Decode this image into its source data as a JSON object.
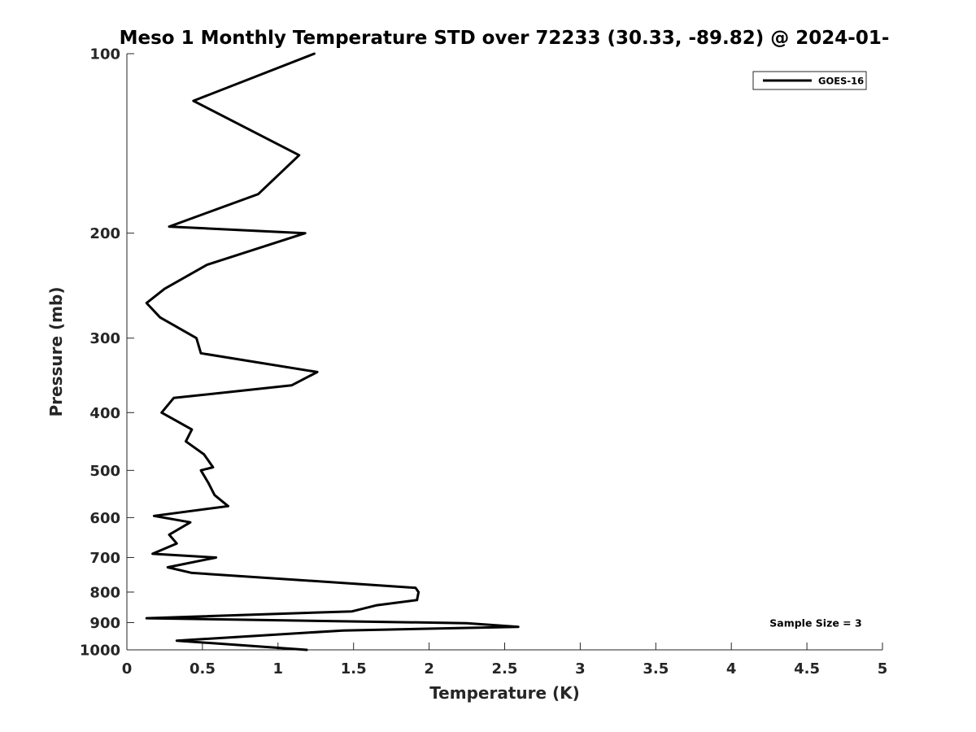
{
  "chart_data": {
    "type": "line",
    "title": "Meso 1 Monthly Temperature STD over 72233 (30.33, -89.82) @ 2024-01-",
    "xlabel": "Temperature (K)",
    "ylabel": "Pressure (mb)",
    "xlim": [
      0,
      5
    ],
    "ylim": [
      100,
      1000
    ],
    "y_scale": "log",
    "y_reversed": true,
    "x_ticks": [
      0,
      0.5,
      1,
      1.5,
      2,
      2.5,
      3,
      3.5,
      4,
      4.5,
      5
    ],
    "x_tick_labels": [
      "0",
      "0.5",
      "1",
      "1.5",
      "2",
      "2.5",
      "3",
      "3.5",
      "4",
      "4.5",
      "5"
    ],
    "y_ticks": [
      100,
      200,
      300,
      400,
      500,
      600,
      700,
      800,
      900,
      1000
    ],
    "y_tick_labels": [
      "100",
      "200",
      "300",
      "400",
      "500",
      "600",
      "700",
      "800",
      "900",
      "1000"
    ],
    "grid": false,
    "legend_placement": "top-right",
    "annotation": "Sample Size = 3",
    "series": [
      {
        "name": "GOES-16",
        "color": "#000000",
        "x": [
          1.24,
          0.44,
          1.14,
          0.87,
          0.28,
          1.18,
          0.53,
          0.25,
          0.13,
          0.22,
          0.46,
          0.49,
          1.26,
          1.09,
          0.31,
          0.23,
          0.43,
          0.39,
          0.51,
          0.57,
          0.49,
          0.54,
          0.58,
          0.67,
          0.18,
          0.42,
          0.28,
          0.33,
          0.17,
          0.59,
          0.27,
          0.43,
          1.91,
          1.93,
          1.92,
          1.65,
          1.49,
          0.13,
          2.25,
          2.59,
          1.43,
          0.33,
          1.19
        ],
        "y": [
          100,
          120,
          148,
          172,
          195,
          200,
          226,
          248,
          262,
          277,
          300,
          318,
          342,
          360,
          378,
          400,
          427,
          447,
          470,
          494,
          500,
          525,
          550,
          574,
          596,
          611,
          641,
          663,
          690,
          700,
          727,
          743,
          787,
          800,
          825,
          842,
          862,
          885,
          902,
          915,
          928,
          965,
          1000
        ]
      }
    ]
  }
}
